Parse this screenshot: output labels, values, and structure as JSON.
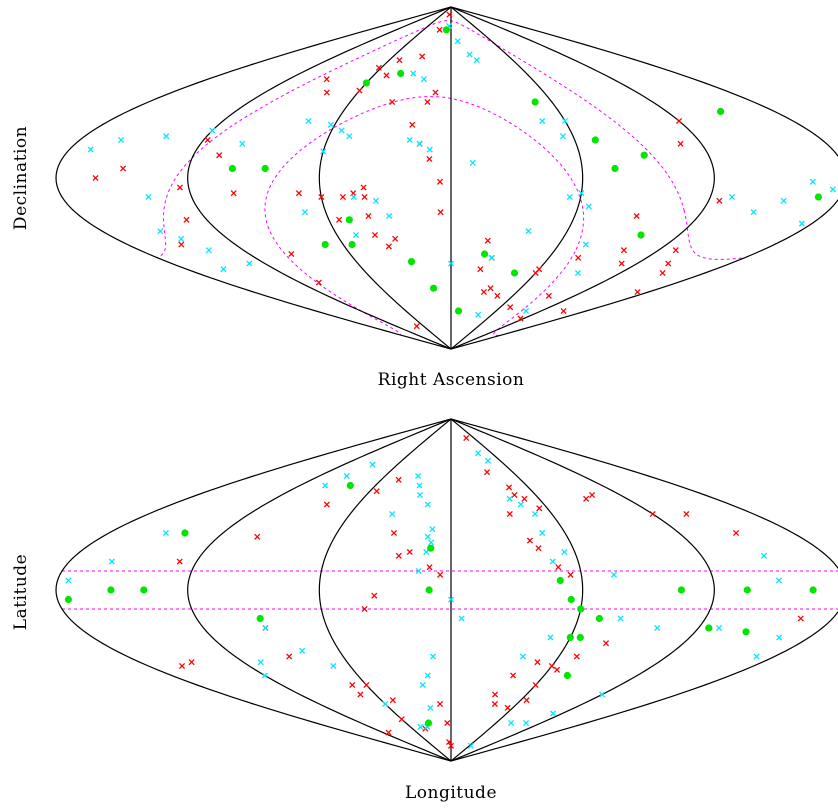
{
  "colors": {
    "red_x": "#ff0000",
    "cyan_x": "#00e5ff",
    "green_dot": "#00e600",
    "dashed_overlay": "#ff00ff",
    "frame": "#000000"
  },
  "chart_data": [
    {
      "type": "scatter",
      "projection": "sinusoidal-sanson-flamsteed",
      "xlabel": "Right Ascension",
      "ylabel": "Declination",
      "grid_meridians_deg": [
        -180,
        -120,
        -60,
        0,
        60,
        120,
        180
      ],
      "markers": {
        "red": "x",
        "cyan": "x",
        "green": "filled-circle"
      },
      "overlay": "galactic plane band (dashed)",
      "series": [
        {
          "color": "red",
          "points": [
            [
              -10,
              86
            ],
            [
              -25,
              78
            ],
            [
              -50,
              54
            ],
            [
              -80,
              45
            ],
            [
              -92,
              52
            ],
            [
              -62,
              58
            ],
            [
              -50,
              62
            ],
            [
              -30,
              64
            ],
            [
              -60,
              46
            ],
            [
              -35,
              40
            ],
            [
              -118,
              20
            ],
            [
              -108,
              12
            ],
            [
              -150,
              5
            ],
            [
              -162,
              0
            ],
            [
              -124,
              -5
            ],
            [
              -130,
              -22
            ],
            [
              -60,
              -10
            ],
            [
              -70,
              -8
            ],
            [
              -95,
              -40
            ],
            [
              -40,
              -5
            ],
            [
              -40,
              -20
            ],
            [
              -55,
              -22
            ],
            [
              -40,
              -10
            ],
            [
              -30,
              -32
            ],
            [
              -40,
              -30
            ],
            [
              -35,
              -36
            ],
            [
              -20,
              28
            ],
            [
              -15,
              18
            ],
            [
              -10,
              10
            ],
            [
              -14,
              40
            ],
            [
              -10,
              45
            ],
            [
              -50,
              -10
            ],
            [
              -150,
              -35
            ],
            [
              -105,
              -55
            ],
            [
              -75,
              -78
            ],
            [
              -5,
              -18
            ],
            [
              20,
              -33
            ],
            [
              25,
              -42
            ],
            [
              20,
              -48
            ],
            [
              34,
              -58
            ],
            [
              30,
              -60
            ],
            [
              45,
              -62
            ],
            [
              90,
              -20
            ],
            [
              110,
              18
            ],
            [
              120,
              30
            ],
            [
              125,
              -12
            ],
            [
              130,
              -38
            ],
            [
              140,
              -45
            ],
            [
              150,
              -50
            ],
            [
              110,
              -45
            ],
            [
              100,
              -38
            ],
            [
              78,
              -42
            ],
            [
              60,
              -48
            ],
            [
              -100,
              -8
            ],
            [
              -5,
              -2
            ],
            [
              -45,
              -8
            ],
            [
              60,
              -50
            ],
            [
              95,
              -62
            ],
            [
              72,
              -68
            ],
            [
              115,
              -74
            ],
            [
              150,
              -70
            ],
            [
              170,
              -60
            ]
          ]
        },
        {
          "color": "cyan",
          "points": [
            [
              -5,
              80
            ],
            [
              10,
              72
            ],
            [
              20,
              65
            ],
            [
              25,
              62
            ],
            [
              -20,
              52
            ],
            [
              -30,
              55
            ],
            [
              -60,
              50
            ],
            [
              -120,
              25
            ],
            [
              -140,
              22
            ],
            [
              -100,
              18
            ],
            [
              -75,
              30
            ],
            [
              -62,
              28
            ],
            [
              -55,
              25
            ],
            [
              -50,
              22
            ],
            [
              -60,
              14
            ],
            [
              -30,
              -20
            ],
            [
              -50,
              -30
            ],
            [
              -70,
              -18
            ],
            [
              -130,
              -45
            ],
            [
              -140,
              -38
            ],
            [
              -155,
              -48
            ],
            [
              -145,
              -32
            ],
            [
              -160,
              20
            ],
            [
              -170,
              15
            ],
            [
              -140,
              -10
            ],
            [
              -150,
              -28
            ],
            [
              -45,
              -10
            ],
            [
              -15,
              18
            ],
            [
              -10,
              15
            ],
            [
              -20,
              20
            ],
            [
              -35,
              -12
            ],
            [
              0,
              -45
            ],
            [
              10,
              8
            ],
            [
              25,
              -42
            ],
            [
              40,
              -28
            ],
            [
              55,
              -10
            ],
            [
              60,
              -8
            ],
            [
              55,
              22
            ],
            [
              48,
              30
            ],
            [
              60,
              30
            ],
            [
              65,
              -15
            ],
            [
              75,
              -35
            ],
            [
              90,
              -50
            ],
            [
              130,
              -10
            ],
            [
              145,
              -18
            ],
            [
              155,
              -12
            ],
            [
              165,
              -2
            ],
            [
              175,
              -6
            ],
            [
              175,
              -24
            ],
            [
              100,
              -70
            ],
            [
              40,
              -72
            ]
          ]
        },
        {
          "color": "green",
          "points": [
            [
              -60,
              50
            ],
            [
              -40,
              55
            ],
            [
              -10,
              78
            ],
            [
              -100,
              5
            ],
            [
              -85,
              5
            ],
            [
              -50,
              -22
            ],
            [
              -55,
              -35
            ],
            [
              -70,
              -35
            ],
            [
              -25,
              -44
            ],
            [
              -15,
              -58
            ],
            [
              10,
              -70
            ],
            [
              50,
              40
            ],
            [
              70,
              20
            ],
            [
              75,
              5
            ],
            [
              90,
              12
            ],
            [
              170,
              -10
            ],
            [
              100,
              -30
            ],
            [
              150,
              35
            ],
            [
              45,
              -50
            ],
            [
              20,
              -40
            ]
          ]
        }
      ]
    },
    {
      "type": "scatter",
      "projection": "sinusoidal-sanson-flamsteed",
      "xlabel": "Longitude",
      "ylabel": "Latitude",
      "grid_meridians_deg": [
        -180,
        -120,
        -60,
        0,
        60,
        120,
        180
      ],
      "markers": {
        "red": "x",
        "cyan": "x",
        "green": "filled-circle"
      },
      "overlay": "latitude band +/-10 deg (dashed)",
      "series": [
        {
          "color": "red",
          "points": [
            [
              40,
              80
            ],
            [
              35,
              62
            ],
            [
              45,
              54
            ],
            [
              45,
              50
            ],
            [
              50,
              48
            ],
            [
              55,
              43
            ],
            [
              35,
              40
            ],
            [
              40,
              26
            ],
            [
              43,
              22
            ],
            [
              50,
              12
            ],
            [
              55,
              8
            ],
            [
              60,
              -40
            ],
            [
              50,
              -38
            ],
            [
              40,
              -45
            ],
            [
              35,
              -55
            ],
            [
              40,
              -60
            ],
            [
              55,
              -62
            ],
            [
              65,
              -58
            ],
            [
              60,
              -50
            ],
            [
              65,
              -42
            ],
            [
              70,
              -35
            ],
            [
              80,
              -28
            ],
            [
              -45,
              58
            ],
            [
              -55,
              52
            ],
            [
              -80,
              45
            ],
            [
              -100,
              28
            ],
            [
              -128,
              15
            ],
            [
              -150,
              -38
            ],
            [
              -90,
              -20
            ],
            [
              -60,
              -50
            ],
            [
              -50,
              -58
            ],
            [
              -60,
              -68
            ],
            [
              -40,
              -73
            ],
            [
              -5,
              -80
            ],
            [
              -10,
              -60
            ],
            [
              -5,
              -70
            ],
            [
              0,
              -82
            ],
            [
              -40,
              -10
            ],
            [
              -20,
              20
            ],
            [
              -10,
              12
            ],
            [
              -5,
              8
            ],
            [
              -70,
              -50
            ],
            [
              -72,
              -55
            ],
            [
              -90,
              -35
            ],
            [
              -30,
              30
            ],
            [
              -25,
              18
            ],
            [
              -35,
              -3
            ],
            [
              -110,
              -75
            ],
            [
              -160,
              -40
            ],
            [
              150,
              30
            ],
            [
              140,
              40
            ],
            [
              120,
              40
            ],
            [
              100,
              50
            ],
            [
              92,
              48
            ],
            [
              165,
              -15
            ]
          ]
        },
        {
          "color": "cyan",
          "points": [
            [
              -30,
              60
            ],
            [
              -25,
              55
            ],
            [
              -22,
              50
            ],
            [
              -15,
              45
            ],
            [
              -35,
              40
            ],
            [
              -10,
              32
            ],
            [
              -12,
              28
            ],
            [
              -10,
              25
            ],
            [
              -12,
              20
            ],
            [
              -15,
              10
            ],
            [
              0,
              -5
            ],
            [
              5,
              -15
            ],
            [
              -10,
              -35
            ],
            [
              -15,
              -45
            ],
            [
              -20,
              -50
            ],
            [
              -20,
              -62
            ],
            [
              -35,
              -72
            ],
            [
              -45,
              -72
            ],
            [
              -60,
              -60
            ],
            [
              -70,
              -40
            ],
            [
              -80,
              -32
            ],
            [
              -90,
              -20
            ],
            [
              -110,
              -38
            ],
            [
              -120,
              -45
            ],
            [
              -160,
              15
            ],
            [
              -175,
              5
            ],
            [
              -150,
              30
            ],
            [
              -100,
              55
            ],
            [
              -95,
              60
            ],
            [
              -88,
              66
            ],
            [
              40,
              72
            ],
            [
              45,
              68
            ],
            [
              40,
              48
            ],
            [
              45,
              45
            ],
            [
              50,
              40
            ],
            [
              48,
              30
            ],
            [
              55,
              20
            ],
            [
              48,
              15
            ],
            [
              40,
              -35
            ],
            [
              50,
              -25
            ],
            [
              60,
              -10
            ],
            [
              75,
              8
            ],
            [
              80,
              -15
            ],
            [
              100,
              -20
            ],
            [
              120,
              -55
            ],
            [
              110,
              -65
            ],
            [
              100,
              -70
            ],
            [
              80,
              -70
            ],
            [
              65,
              -82
            ],
            [
              130,
              -20
            ],
            [
              150,
              18
            ],
            [
              150,
              5
            ],
            [
              165,
              -25
            ],
            [
              170,
              -35
            ]
          ]
        },
        {
          "color": "green",
          "points": [
            [
              -175,
              -5
            ],
            [
              -155,
              0
            ],
            [
              -140,
              0
            ],
            [
              -140,
              30
            ],
            [
              -90,
              -15
            ],
            [
              -30,
              -70
            ],
            [
              -80,
              55
            ],
            [
              -10,
              22
            ],
            [
              -10,
              0
            ],
            [
              50,
              5
            ],
            [
              60,
              -10
            ],
            [
              70,
              -15
            ],
            [
              60,
              -25
            ],
            [
              55,
              -5
            ],
            [
              65,
              -25
            ],
            [
              75,
              -45
            ],
            [
              125,
              -20
            ],
            [
              105,
              0
            ],
            [
              135,
              0
            ],
            [
              145,
              -22
            ],
            [
              165,
              0
            ]
          ]
        }
      ]
    }
  ]
}
